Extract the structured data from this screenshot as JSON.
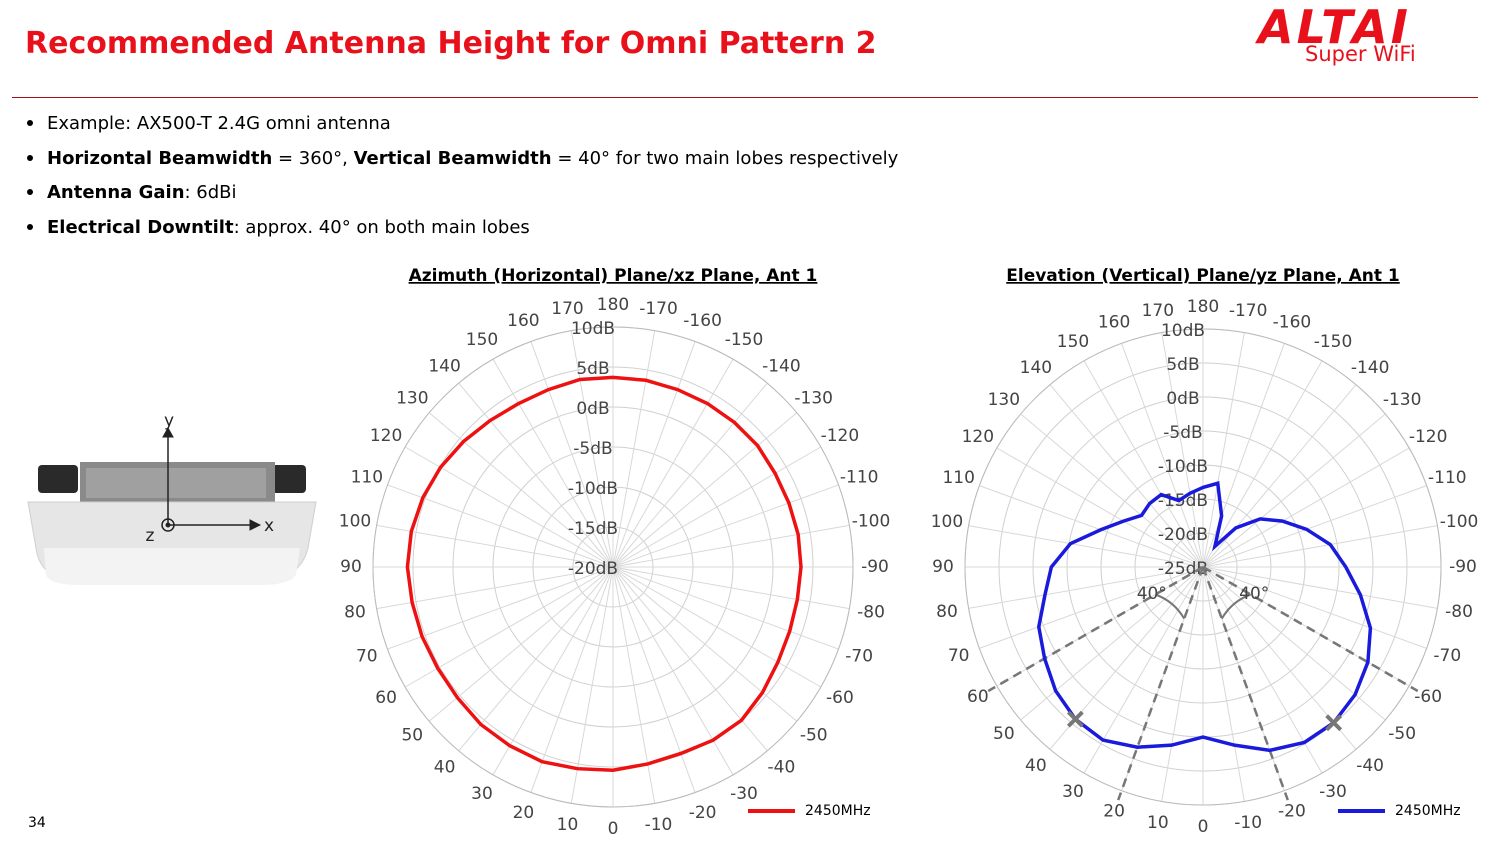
{
  "header": {
    "title": "Recommended Antenna Height for Omni Pattern 2",
    "logo": "ALTAI",
    "logo_sub": "Super WiFi"
  },
  "bullets": [
    [
      {
        "text": "Example: AX500-T 2.4G omni antenna"
      }
    ],
    [
      {
        "text": "Horizontal Beamwidth",
        "bold": true
      },
      {
        "text": " = 360°, "
      },
      {
        "text": "Vertical Beamwidth",
        "bold": true
      },
      {
        "text": " = 40° for two main lobes respectively"
      }
    ],
    [
      {
        "text": "Antenna Gain",
        "bold": true
      },
      {
        "text": ": 6dBi"
      }
    ],
    [
      {
        "text": "Electrical Downtilt",
        "bold": true
      },
      {
        "text": ": approx. 40° on both main lobes"
      }
    ]
  ],
  "diagram": {
    "x_label": "x",
    "y_label": "y",
    "z_label": "z"
  },
  "page_number": "34",
  "chart_data": [
    {
      "type": "polar",
      "title": "Azimuth (Horizontal) Plane/xz Plane, Ant 1",
      "theta": [
        180,
        170,
        160,
        150,
        140,
        130,
        120,
        110,
        100,
        90,
        80,
        70,
        60,
        50,
        40,
        30,
        20,
        10,
        0,
        -10,
        -20,
        -30,
        -40,
        -50,
        -60,
        -70,
        -80,
        -90,
        -100,
        -110,
        -120,
        -130,
        -140,
        -150,
        -160,
        -170
      ],
      "thetaticks": [
        180,
        170,
        160,
        150,
        140,
        130,
        120,
        110,
        100,
        90,
        80,
        70,
        60,
        50,
        40,
        30,
        20,
        10,
        0,
        -10,
        -20,
        -30,
        -40,
        -50,
        -60,
        -70,
        -80,
        -90,
        -100,
        -110,
        -120,
        -130,
        -140,
        -150,
        -160,
        -170
      ],
      "rlim": [
        -20,
        10
      ],
      "rticks": [
        {
          "value": 10,
          "label": "10dB"
        },
        {
          "value": 5,
          "label": "5dB"
        },
        {
          "value": 0,
          "label": "0dB"
        },
        {
          "value": -5,
          "label": "-5dB"
        },
        {
          "value": -10,
          "label": "-10dB"
        },
        {
          "value": -15,
          "label": "-15dB"
        },
        {
          "value": -20,
          "label": "-20dB"
        }
      ],
      "series": [
        {
          "name": "2450MHz",
          "color": "#ee1111",
          "values": [
            3.7,
            3.8,
            3.6,
            3.6,
            3.9,
            4.4,
            4.9,
            5.3,
            5.6,
            5.7,
            5.5,
            5.4,
            5.3,
            5.4,
            5.7,
            5.8,
            5.9,
            5.6,
            5.4,
            5.0,
            4.8,
            5.0,
            5.0,
            4.4,
            3.8,
            3.5,
            3.4,
            3.5,
            3.5,
            3.4,
            3.4,
            3.6,
            3.6,
            3.6,
            3.6,
            3.7
          ]
        }
      ],
      "grid": true
    },
    {
      "type": "polar",
      "title": "Elevation (Vertical) Plane/yz Plane, Ant 1",
      "theta": [
        180,
        170,
        160,
        150,
        140,
        130,
        120,
        110,
        100,
        90,
        80,
        70,
        60,
        50,
        40,
        30,
        20,
        10,
        0,
        -10,
        -20,
        -30,
        -40,
        -50,
        -60,
        -70,
        -80,
        -90,
        -100,
        -110,
        -120,
        -130,
        -140,
        -150,
        -160,
        -170
      ],
      "thetaticks": [
        180,
        170,
        160,
        150,
        140,
        130,
        120,
        110,
        100,
        90,
        80,
        70,
        60,
        50,
        40,
        30,
        20,
        10,
        0,
        -10,
        -20,
        -30,
        -40,
        -50,
        -60,
        -70,
        -80,
        -90,
        -100,
        -110,
        -120,
        -130,
        -140,
        -150,
        -160,
        -170
      ],
      "rlim": [
        -25,
        10
      ],
      "rticks": [
        {
          "value": 10,
          "label": "10dB"
        },
        {
          "value": 5,
          "label": "5dB"
        },
        {
          "value": 0,
          "label": "0dB"
        },
        {
          "value": -5,
          "label": "-5dB"
        },
        {
          "value": -10,
          "label": "-10dB"
        },
        {
          "value": -15,
          "label": "-15dB"
        },
        {
          "value": -20,
          "label": "-20dB"
        },
        {
          "value": -25,
          "label": "-25dB"
        }
      ],
      "series": [
        {
          "name": "2450MHz",
          "color": "#1a1adc",
          "values": [
            -13.3,
            -14.0,
            -14.6,
            -12.7,
            -12.8,
            -13.2,
            -11.5,
            -9.0,
            -5.2,
            -2.7,
            -1.4,
            0.7,
            1.9,
            3.3,
            4.2,
            4.4,
            3.2,
            1.6,
            0,
            1.6,
            3.7,
            4.8,
            4.9,
            4.2,
            3.0,
            1.2,
            -1.5,
            -4.0,
            -6.0,
            -8.8,
            -11.5,
            -14.0,
            -17.5,
            -21.5,
            -17.0,
            -12.5
          ]
        }
      ],
      "beam_edges": [
        60,
        20,
        -20,
        -60
      ],
      "beam_labels": [
        {
          "from": 60,
          "to": 20,
          "label": "40°"
        },
        {
          "from": -20,
          "to": -60,
          "label": "40°"
        }
      ],
      "peak_markers": [
        40,
        -40
      ],
      "grid": true
    }
  ]
}
